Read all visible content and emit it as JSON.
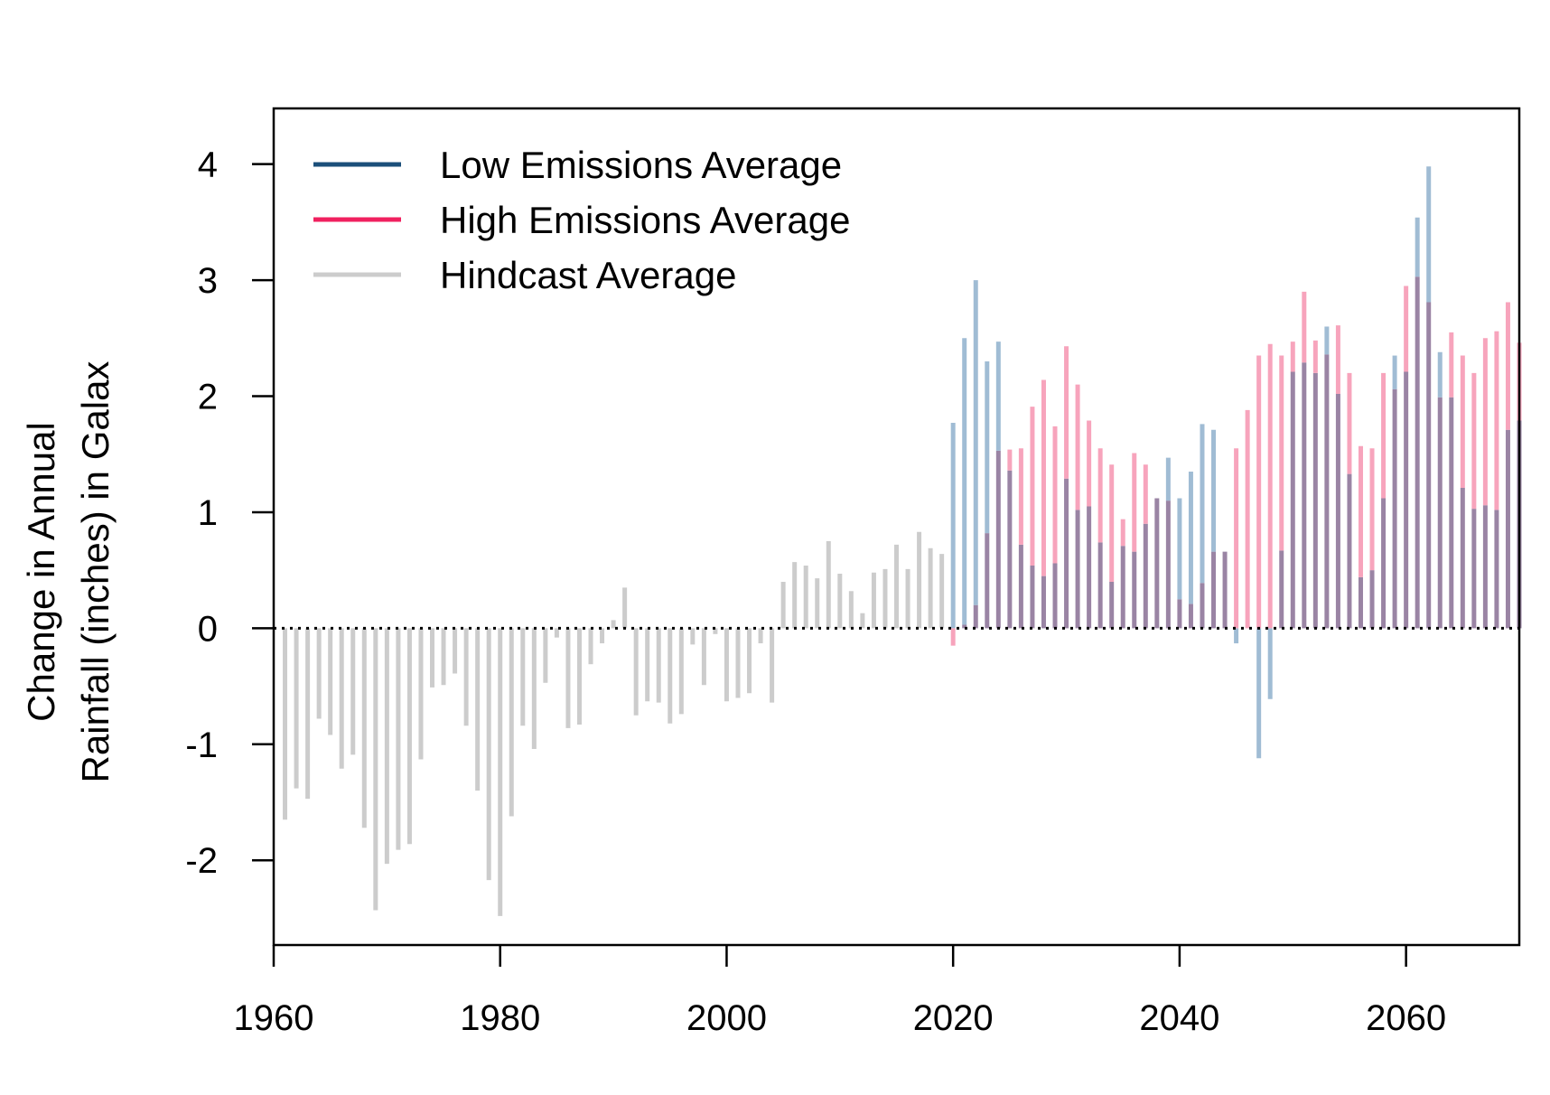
{
  "chart_data": {
    "type": "bar",
    "title": "",
    "xlabel": "",
    "ylabel": "Change in Annual\nRainfall (inches) in Galax",
    "ylabel_lines": [
      "Change in Annual",
      "Rainfall (inches) in Galax"
    ],
    "xlim": [
      1960,
      2070
    ],
    "ylim": [
      -2.73,
      4.48
    ],
    "x_ticks": [
      1960,
      1980,
      2000,
      2020,
      2040,
      2060
    ],
    "y_ticks": [
      -2,
      -1,
      0,
      1,
      2,
      3,
      4
    ],
    "grid": false,
    "zero_line": "dotted",
    "legend_position": "top-left",
    "legend": [
      {
        "label": "Low Emissions Average",
        "color": "#1b4f7a"
      },
      {
        "label": "High Emissions Average",
        "color": "#f0205f"
      },
      {
        "label": "Hindcast Average",
        "color": "#cccccc"
      }
    ],
    "colors": {
      "hindcast": "#cccccc",
      "low_bar": "#a0bcd4",
      "high_bar": "#f7a4bc",
      "overlap": "#9a84a4",
      "frame": "#000000"
    },
    "series": [
      {
        "name": "Hindcast Average",
        "x": [
          1961,
          1962,
          1963,
          1964,
          1965,
          1966,
          1967,
          1968,
          1969,
          1970,
          1971,
          1972,
          1973,
          1974,
          1975,
          1976,
          1977,
          1978,
          1979,
          1980,
          1981,
          1982,
          1983,
          1984,
          1985,
          1986,
          1987,
          1988,
          1989,
          1990,
          1991,
          1992,
          1993,
          1994,
          1995,
          1996,
          1997,
          1998,
          1999,
          2000,
          2001,
          2002,
          2003,
          2004,
          2005,
          2006,
          2007,
          2008,
          2009,
          2010,
          2011,
          2012,
          2013,
          2014,
          2015,
          2016,
          2017,
          2018,
          2019
        ],
        "values": [
          -1.65,
          -1.38,
          -1.47,
          -0.78,
          -0.92,
          -1.21,
          -1.09,
          -1.72,
          -2.43,
          -2.03,
          -1.91,
          -1.86,
          -1.13,
          -0.51,
          -0.49,
          -0.39,
          -0.84,
          -1.4,
          -2.17,
          -2.48,
          -1.62,
          -0.84,
          -1.04,
          -0.47,
          -0.08,
          -0.86,
          -0.83,
          -0.31,
          -0.13,
          0.07,
          0.35,
          -0.75,
          -0.63,
          -0.64,
          -0.82,
          -0.74,
          -0.14,
          -0.49,
          -0.05,
          -0.63,
          -0.6,
          -0.56,
          -0.13,
          -0.64,
          0.4,
          0.57,
          0.54,
          0.43,
          0.75,
          0.47,
          0.32,
          0.13,
          0.48,
          0.51,
          0.72,
          0.51,
          0.83,
          0.69,
          0.64
        ]
      },
      {
        "name": "Low Emissions Average",
        "x": [
          2020,
          2021,
          2022,
          2023,
          2024,
          2025,
          2026,
          2027,
          2028,
          2029,
          2030,
          2031,
          2032,
          2033,
          2034,
          2035,
          2036,
          2037,
          2038,
          2039,
          2040,
          2041,
          2042,
          2043,
          2044,
          2045,
          2046,
          2047,
          2048,
          2049,
          2050,
          2051,
          2052,
          2053,
          2054,
          2055,
          2056,
          2057,
          2058,
          2059,
          2060,
          2061,
          2062,
          2063,
          2064,
          2065,
          2066,
          2067,
          2068,
          2069,
          2070
        ],
        "values": [
          1.77,
          2.5,
          3.0,
          2.3,
          2.47,
          1.36,
          0.72,
          0.54,
          0.45,
          0.56,
          1.29,
          1.02,
          1.05,
          0.74,
          0.4,
          0.71,
          0.66,
          0.9,
          1.12,
          1.47,
          1.12,
          1.35,
          1.76,
          1.71,
          0.66,
          -0.13,
          0.0,
          -1.12,
          -0.61,
          0.67,
          2.21,
          2.29,
          2.2,
          2.6,
          2.02,
          1.33,
          0.44,
          0.5,
          1.12,
          2.35,
          2.21,
          3.54,
          3.98,
          2.38,
          1.99,
          1.21,
          1.03,
          1.06,
          1.02,
          1.71,
          1.79
        ]
      },
      {
        "name": "High Emissions Average",
        "x": [
          2020,
          2021,
          2022,
          2023,
          2024,
          2025,
          2026,
          2027,
          2028,
          2029,
          2030,
          2031,
          2032,
          2033,
          2034,
          2035,
          2036,
          2037,
          2038,
          2039,
          2040,
          2041,
          2042,
          2043,
          2044,
          2045,
          2046,
          2047,
          2048,
          2049,
          2050,
          2051,
          2052,
          2053,
          2054,
          2055,
          2056,
          2057,
          2058,
          2059,
          2060,
          2061,
          2062,
          2063,
          2064,
          2065,
          2066,
          2067,
          2068,
          2069,
          2070
        ],
        "values": [
          -0.15,
          0.03,
          0.2,
          0.82,
          1.53,
          1.54,
          1.55,
          1.91,
          2.14,
          1.74,
          2.43,
          2.1,
          1.79,
          1.55,
          1.41,
          0.94,
          1.51,
          1.41,
          1.12,
          1.1,
          0.25,
          0.21,
          0.39,
          0.66,
          0.66,
          1.55,
          1.88,
          2.35,
          2.45,
          2.35,
          2.47,
          2.9,
          2.48,
          2.36,
          2.61,
          2.2,
          1.57,
          1.55,
          2.2,
          2.06,
          2.95,
          3.03,
          2.81,
          1.99,
          2.55,
          2.35,
          2.2,
          2.5,
          2.56,
          2.81,
          2.46
        ]
      }
    ]
  }
}
